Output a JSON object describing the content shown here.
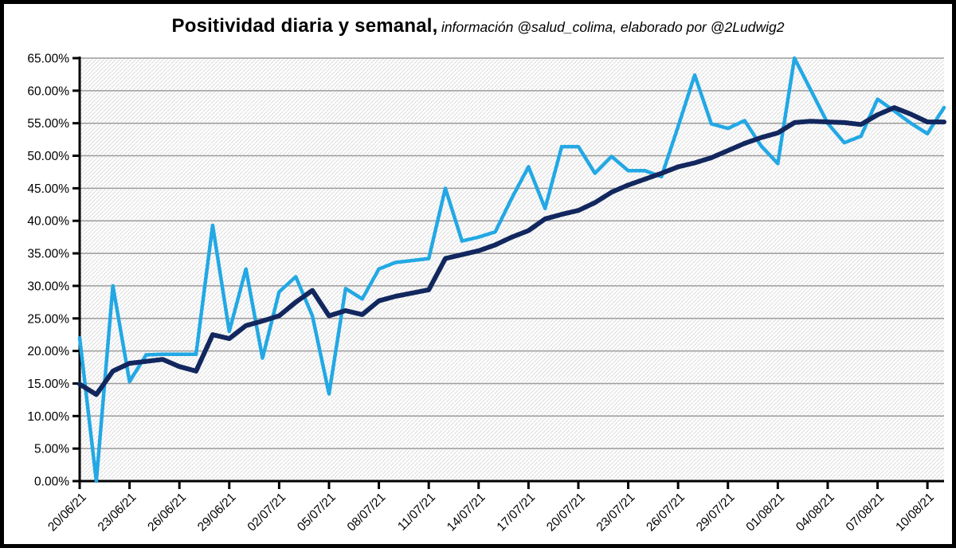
{
  "title": {
    "main": "Positividad diaria y semanal,",
    "subtitle": " información @salud_colima, elaborado por @2Ludwig2"
  },
  "colors": {
    "daily_line": "#23A8E4",
    "weekly_line": "#12275E",
    "gridline": "#9c9c9c",
    "axis": "#000000",
    "hatch": "#dcdcdc",
    "frame_border": "#000000"
  },
  "chart_data": {
    "type": "line",
    "title": "Positividad diaria y semanal",
    "source_note": "información @salud_colima, elaborado por @2Ludwig2",
    "grid": "horizontal",
    "legend_position": "none",
    "y_axis": {
      "min": 0,
      "max": 65,
      "step": 5,
      "unit": "%",
      "format": "two-decimal percent"
    },
    "y_tick_labels": [
      "0.00%",
      "5.00%",
      "10.00%",
      "15.00%",
      "20.00%",
      "25.00%",
      "30.00%",
      "35.00%",
      "40.00%",
      "45.00%",
      "50.00%",
      "55.00%",
      "60.00%",
      "65.00%"
    ],
    "x_tick_labels": [
      "20/06/21",
      "23/06/21",
      "26/06/21",
      "29/06/21",
      "02/07/21",
      "05/07/21",
      "08/07/21",
      "11/07/21",
      "14/07/21",
      "17/07/21",
      "20/07/21",
      "23/07/21",
      "26/07/21",
      "29/07/21",
      "01/08/21",
      "04/08/21",
      "07/08/21",
      "10/08/21"
    ],
    "x_tick_every_days": 3,
    "x": [
      "20/06/21",
      "21/06/21",
      "22/06/21",
      "23/06/21",
      "24/06/21",
      "25/06/21",
      "26/06/21",
      "27/06/21",
      "28/06/21",
      "29/06/21",
      "30/06/21",
      "01/07/21",
      "02/07/21",
      "03/07/21",
      "04/07/21",
      "05/07/21",
      "06/07/21",
      "07/07/21",
      "08/07/21",
      "09/07/21",
      "10/07/21",
      "11/07/21",
      "12/07/21",
      "13/07/21",
      "14/07/21",
      "15/07/21",
      "16/07/21",
      "17/07/21",
      "18/07/21",
      "19/07/21",
      "20/07/21",
      "21/07/21",
      "22/07/21",
      "23/07/21",
      "24/07/21",
      "25/07/21",
      "26/07/21",
      "27/07/21",
      "28/07/21",
      "29/07/21",
      "30/07/21",
      "31/07/21",
      "01/08/21",
      "02/08/21",
      "03/08/21",
      "04/08/21",
      "05/08/21",
      "06/08/21",
      "07/08/21",
      "08/08/21",
      "09/08/21",
      "10/08/21",
      "11/08/21"
    ],
    "series": [
      {
        "name": "Positividad diaria",
        "color": "#23A8E4",
        "values": [
          22.0,
          0.0,
          30.0,
          15.3,
          19.4,
          19.5,
          19.5,
          19.5,
          39.3,
          23.0,
          32.6,
          18.9,
          29.1,
          31.4,
          25.4,
          13.4,
          29.6,
          28.0,
          32.6,
          33.6,
          33.9,
          34.2,
          45.0,
          36.9,
          37.5,
          38.3,
          43.5,
          48.3,
          41.9,
          51.4,
          51.4,
          47.3,
          49.9,
          47.7,
          47.7,
          46.8,
          54.5,
          62.4,
          54.9,
          54.2,
          55.4,
          51.5,
          48.8,
          65.0,
          60.0,
          55.0,
          52.0,
          53.0,
          58.7,
          56.9,
          55.0,
          53.4,
          57.4
        ]
      },
      {
        "name": "Positividad semanal",
        "color": "#12275E",
        "values": [
          14.9,
          13.3,
          16.9,
          18.1,
          18.4,
          18.7,
          17.6,
          16.9,
          22.5,
          21.9,
          23.9,
          24.6,
          25.4,
          27.5,
          29.3,
          25.4,
          26.2,
          25.6,
          27.7,
          28.4,
          28.9,
          29.4,
          34.2,
          34.8,
          35.4,
          36.3,
          37.5,
          38.5,
          40.3,
          41.0,
          41.6,
          42.8,
          44.4,
          45.5,
          46.4,
          47.3,
          48.3,
          48.9,
          49.7,
          50.8,
          51.9,
          52.8,
          53.5,
          55.1,
          55.3,
          55.2,
          55.1,
          54.8,
          56.3,
          57.4,
          56.4,
          55.2,
          55.2
        ]
      }
    ]
  }
}
